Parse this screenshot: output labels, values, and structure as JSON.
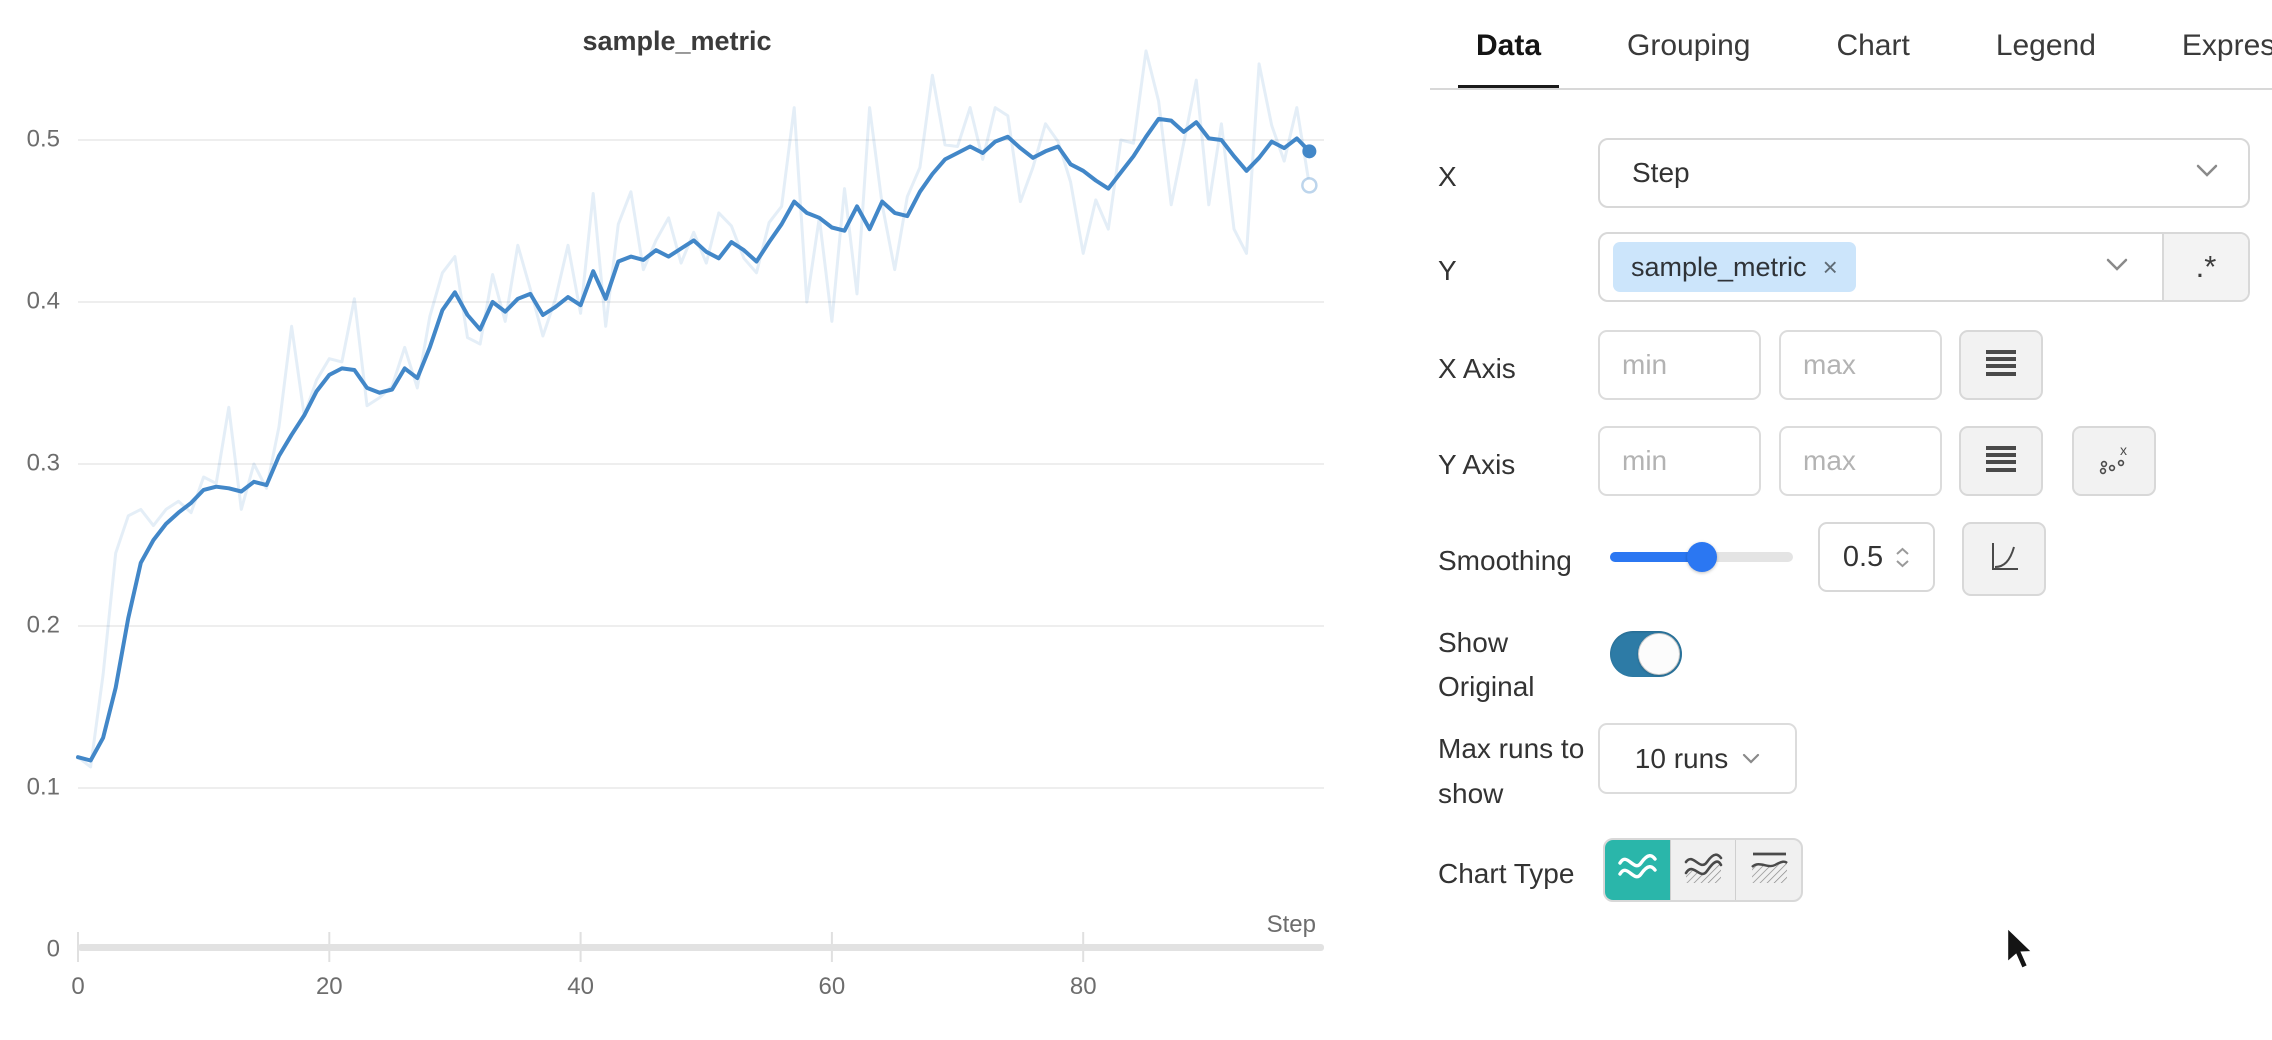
{
  "chart_data": {
    "type": "line",
    "title": "sample_metric",
    "xlabel": "Step",
    "x_ticks": [
      0,
      20,
      40,
      60,
      80
    ],
    "y_ticks": [
      0,
      0.1,
      0.2,
      0.3,
      0.4,
      0.5
    ],
    "xlim": [
      0,
      99
    ],
    "ylim": [
      0,
      0.56
    ],
    "grid": true,
    "legend": "none",
    "series": [
      {
        "name": "sample_metric (smoothed 0.5)",
        "color": "#4287c8",
        "opacity": 1,
        "width": 4,
        "end_dot": "solid",
        "values": [
          0.119,
          0.117,
          0.131,
          0.162,
          0.205,
          0.239,
          0.253,
          0.263,
          0.27,
          0.276,
          0.284,
          0.286,
          0.285,
          0.283,
          0.289,
          0.287,
          0.305,
          0.318,
          0.33,
          0.345,
          0.355,
          0.359,
          0.358,
          0.347,
          0.344,
          0.346,
          0.359,
          0.353,
          0.372,
          0.395,
          0.406,
          0.392,
          0.383,
          0.4,
          0.394,
          0.402,
          0.405,
          0.392,
          0.397,
          0.403,
          0.398,
          0.419,
          0.402,
          0.425,
          0.428,
          0.426,
          0.432,
          0.428,
          0.433,
          0.438,
          0.431,
          0.427,
          0.437,
          0.432,
          0.425,
          0.437,
          0.448,
          0.462,
          0.455,
          0.452,
          0.446,
          0.444,
          0.459,
          0.445,
          0.462,
          0.455,
          0.453,
          0.468,
          0.479,
          0.488,
          0.492,
          0.496,
          0.492,
          0.499,
          0.502,
          0.495,
          0.489,
          0.493,
          0.496,
          0.485,
          0.481,
          0.475,
          0.47,
          0.48,
          0.49,
          0.502,
          0.513,
          0.512,
          0.505,
          0.511,
          0.501,
          0.5,
          0.49,
          0.481,
          0.489,
          0.499,
          0.495,
          0.501,
          0.493
        ]
      },
      {
        "name": "sample_metric (original)",
        "color": "#4287c8",
        "opacity": 0.14,
        "width": 3,
        "end_dot": "hollow",
        "values": [
          0.119,
          0.113,
          0.17,
          0.245,
          0.268,
          0.272,
          0.262,
          0.272,
          0.277,
          0.27,
          0.292,
          0.288,
          0.335,
          0.272,
          0.3,
          0.285,
          0.323,
          0.385,
          0.33,
          0.352,
          0.365,
          0.363,
          0.402,
          0.336,
          0.341,
          0.348,
          0.372,
          0.347,
          0.391,
          0.418,
          0.428,
          0.378,
          0.374,
          0.417,
          0.388,
          0.435,
          0.408,
          0.379,
          0.402,
          0.435,
          0.393,
          0.467,
          0.385,
          0.448,
          0.468,
          0.42,
          0.438,
          0.452,
          0.424,
          0.443,
          0.424,
          0.455,
          0.447,
          0.427,
          0.418,
          0.449,
          0.459,
          0.52,
          0.4,
          0.452,
          0.388,
          0.47,
          0.405,
          0.52,
          0.46,
          0.42,
          0.465,
          0.483,
          0.54,
          0.497,
          0.496,
          0.52,
          0.488,
          0.52,
          0.515,
          0.462,
          0.483,
          0.51,
          0.499,
          0.474,
          0.43,
          0.463,
          0.445,
          0.5,
          0.498,
          0.555,
          0.524,
          0.46,
          0.498,
          0.537,
          0.46,
          0.51,
          0.445,
          0.43,
          0.547,
          0.509,
          0.487,
          0.52,
          0.472
        ]
      }
    ]
  },
  "panel": {
    "tabs": [
      {
        "label": "Data",
        "active": true
      },
      {
        "label": "Grouping",
        "active": false
      },
      {
        "label": "Chart",
        "active": false
      },
      {
        "label": "Legend",
        "active": false
      },
      {
        "label": "Expressions",
        "active": false
      }
    ],
    "x_row": {
      "label": "X",
      "value": "Step"
    },
    "y_row": {
      "label": "Y",
      "chip_label": "sample_metric",
      "chip_remove": "×",
      "regex_button_label": ".*"
    },
    "x_axis_row": {
      "label": "X Axis",
      "min_placeholder": "min",
      "max_placeholder": "max"
    },
    "y_axis_row": {
      "label": "Y Axis",
      "min_placeholder": "min",
      "max_placeholder": "max"
    },
    "smoothing_row": {
      "label": "Smoothing",
      "value": "0.5",
      "percent": 50
    },
    "show_original_row": {
      "label": "Show Original",
      "on": true
    },
    "max_runs_row": {
      "label": "Max runs to show",
      "value": "10 runs"
    },
    "chart_type_row": {
      "label": "Chart Type",
      "active_index": 0
    }
  },
  "colors": {
    "line": "#4287c8",
    "slider_accent": "#2b77f2",
    "toggle_on": "#2d7ba6",
    "chart_type_active": "#2ab6aa",
    "chip_bg": "#cce5fb",
    "grid": "#e8e8e8",
    "axis_bar": "#e2e2e2",
    "tick_text": "#6d6d6d"
  }
}
